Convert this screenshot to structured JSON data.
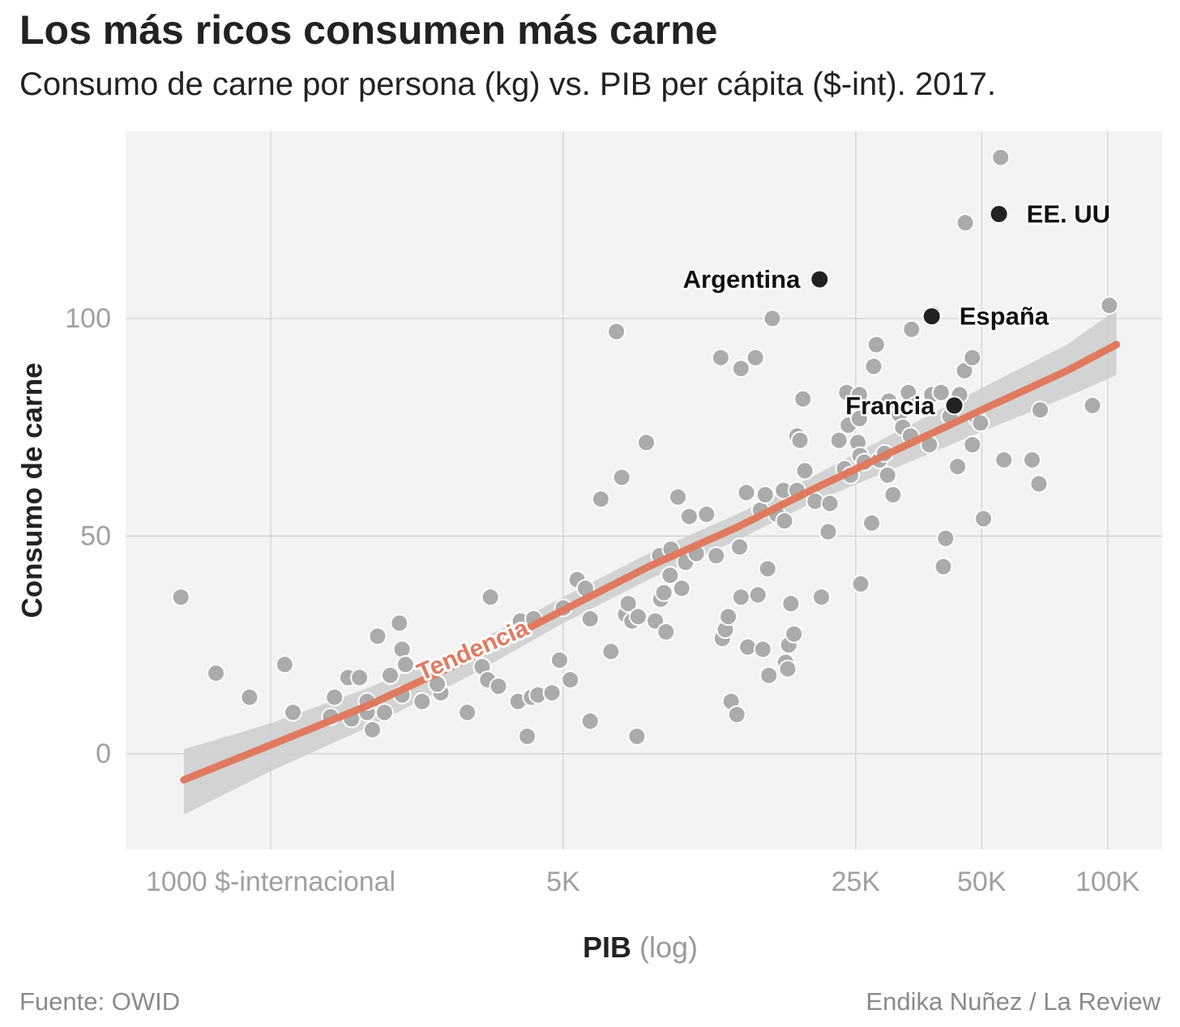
{
  "header": {
    "title": "Los más ricos consumen más carne",
    "subtitle": "Consumo de carne por persona (kg) vs. PIB per cápita ($-int). 2017."
  },
  "footer": {
    "source": "Fuente: OWID",
    "credit": "Endika Nuñez / La Review"
  },
  "colors": {
    "panel": "#f3f3f3",
    "grid": "#cfcfcf",
    "point": "#ababab",
    "highlight": "#222222",
    "trend": "#e07a5f",
    "band": "#cccccc",
    "axis_text": "#a0a0a0"
  },
  "chart_data": {
    "type": "scatter",
    "x_scale": "log",
    "xlim": [
      450,
      135000
    ],
    "ylim": [
      -22,
      143
    ],
    "xlabel_main": "PIB",
    "xlabel_suffix": "(log)",
    "ylabel": "Consumo de carne",
    "x_ticks": [
      {
        "value": 1000,
        "label": "1000 $-internacional"
      },
      {
        "value": 5000,
        "label": "5K"
      },
      {
        "value": 25000,
        "label": "25K"
      },
      {
        "value": 50000,
        "label": "50K"
      },
      {
        "value": 100000,
        "label": "100K"
      }
    ],
    "y_ticks": [
      {
        "value": 0,
        "label": "0"
      },
      {
        "value": 50,
        "label": "50"
      },
      {
        "value": 100,
        "label": "100"
      }
    ],
    "grid": true,
    "highlighted": [
      {
        "label": "EE. UU",
        "x": 55000,
        "y": 124,
        "label_side": "right"
      },
      {
        "label": "Argentina",
        "x": 20500,
        "y": 109,
        "label_side": "left"
      },
      {
        "label": "España",
        "x": 38000,
        "y": 100.5,
        "label_side": "right"
      },
      {
        "label": "Francia",
        "x": 43000,
        "y": 80,
        "label_side": "left"
      }
    ],
    "trend": {
      "label": "Tendencia",
      "points": [
        [
          620,
          -6
        ],
        [
          1000,
          2
        ],
        [
          1700,
          11
        ],
        [
          3000,
          22
        ],
        [
          5000,
          33
        ],
        [
          8000,
          43
        ],
        [
          13000,
          52
        ],
        [
          20000,
          61
        ],
        [
          30000,
          69
        ],
        [
          50000,
          79
        ],
        [
          80000,
          88
        ],
        [
          105000,
          94
        ]
      ],
      "band": [
        [
          620,
          1,
          -14
        ],
        [
          1000,
          7,
          -4
        ],
        [
          1700,
          15,
          6
        ],
        [
          3000,
          25,
          18
        ],
        [
          5000,
          36,
          30
        ],
        [
          8000,
          46,
          40
        ],
        [
          13000,
          55,
          49
        ],
        [
          20000,
          64,
          58
        ],
        [
          30000,
          73,
          65
        ],
        [
          50000,
          84,
          74
        ],
        [
          80000,
          94,
          82
        ],
        [
          105000,
          102,
          87
        ]
      ]
    },
    "points": [
      [
        610,
        36
      ],
      [
        740,
        18.5
      ],
      [
        890,
        13
      ],
      [
        1080,
        20.5
      ],
      [
        1130,
        9.5
      ],
      [
        1390,
        8.5
      ],
      [
        1420,
        13
      ],
      [
        1530,
        17.5
      ],
      [
        1560,
        8
      ],
      [
        1630,
        17.5
      ],
      [
        1700,
        9.5
      ],
      [
        1700,
        12
      ],
      [
        1750,
        5.5
      ],
      [
        1800,
        27
      ],
      [
        1870,
        9.5
      ],
      [
        1930,
        18
      ],
      [
        2030,
        30
      ],
      [
        2060,
        24
      ],
      [
        2100,
        20.5
      ],
      [
        2060,
        13.5
      ],
      [
        2300,
        12
      ],
      [
        2550,
        14
      ],
      [
        2500,
        16
      ],
      [
        2950,
        9.5
      ],
      [
        3200,
        20
      ],
      [
        3350,
        36
      ],
      [
        3300,
        17
      ],
      [
        3500,
        15.5
      ],
      [
        3900,
        12
      ],
      [
        3950,
        30.5
      ],
      [
        4100,
        4
      ],
      [
        4200,
        13
      ],
      [
        4250,
        31
      ],
      [
        4350,
        13.5
      ],
      [
        4700,
        14
      ],
      [
        4900,
        21.5
      ],
      [
        5000,
        33.5
      ],
      [
        5200,
        17
      ],
      [
        5400,
        40
      ],
      [
        5650,
        38
      ],
      [
        5800,
        31
      ],
      [
        5800,
        7.5
      ],
      [
        6150,
        58.5
      ],
      [
        6500,
        23.5
      ],
      [
        6700,
        97
      ],
      [
        6900,
        63.5
      ],
      [
        7050,
        32
      ],
      [
        7150,
        34.5
      ],
      [
        7300,
        30.5
      ],
      [
        7500,
        4
      ],
      [
        7550,
        31.5
      ],
      [
        7900,
        71.5
      ],
      [
        8300,
        30.5
      ],
      [
        8500,
        45.5
      ],
      [
        8550,
        35.5
      ],
      [
        8700,
        37
      ],
      [
        8800,
        28
      ],
      [
        9000,
        41
      ],
      [
        9050,
        47
      ],
      [
        9400,
        59
      ],
      [
        9600,
        38
      ],
      [
        9800,
        44
      ],
      [
        10000,
        54.5
      ],
      [
        10400,
        46
      ],
      [
        11000,
        55
      ],
      [
        11600,
        45.5
      ],
      [
        12000,
        26.5
      ],
      [
        11900,
        91
      ],
      [
        12200,
        28.5
      ],
      [
        12400,
        31.5
      ],
      [
        12600,
        12
      ],
      [
        13000,
        9
      ],
      [
        13200,
        47.5
      ],
      [
        13300,
        88.5
      ],
      [
        13300,
        36
      ],
      [
        13700,
        60
      ],
      [
        13800,
        24.5
      ],
      [
        14400,
        91
      ],
      [
        14600,
        36.5
      ],
      [
        14800,
        56
      ],
      [
        15000,
        24
      ],
      [
        15200,
        59.5
      ],
      [
        15400,
        42.5
      ],
      [
        15500,
        18
      ],
      [
        15800,
        100
      ],
      [
        16200,
        55
      ],
      [
        16800,
        60.5
      ],
      [
        16900,
        53.5
      ],
      [
        17000,
        21
      ],
      [
        17200,
        19.5
      ],
      [
        17300,
        25
      ],
      [
        17500,
        34.5
      ],
      [
        17800,
        27.5
      ],
      [
        18100,
        60.5
      ],
      [
        18100,
        73
      ],
      [
        18400,
        72
      ],
      [
        18700,
        81.5
      ],
      [
        18900,
        65
      ],
      [
        20000,
        58
      ],
      [
        20700,
        36
      ],
      [
        21500,
        51
      ],
      [
        21700,
        57.5
      ],
      [
        22800,
        72
      ],
      [
        23500,
        65.5
      ],
      [
        23800,
        83
      ],
      [
        24000,
        75.5
      ],
      [
        24300,
        64
      ],
      [
        25500,
        82.5
      ],
      [
        25300,
        71.5
      ],
      [
        25500,
        77
      ],
      [
        25600,
        68.5
      ],
      [
        26200,
        67
      ],
      [
        25700,
        39
      ],
      [
        27300,
        53
      ],
      [
        27600,
        89
      ],
      [
        28000,
        94
      ],
      [
        28500,
        67.5
      ],
      [
        29300,
        69
      ],
      [
        29800,
        64
      ],
      [
        30000,
        81
      ],
      [
        30700,
        59.5
      ],
      [
        31800,
        78
      ],
      [
        32400,
        75
      ],
      [
        33400,
        83
      ],
      [
        33800,
        73
      ],
      [
        34000,
        97.5
      ],
      [
        34700,
        80
      ],
      [
        36600,
        79.5
      ],
      [
        37500,
        71
      ],
      [
        38300,
        101
      ],
      [
        38000,
        82.5
      ],
      [
        40000,
        83
      ],
      [
        40500,
        43
      ],
      [
        41000,
        49.5
      ],
      [
        42000,
        77.5
      ],
      [
        43800,
        66
      ],
      [
        44300,
        82.5
      ],
      [
        45500,
        88
      ],
      [
        45700,
        122
      ],
      [
        47500,
        91
      ],
      [
        47500,
        71
      ],
      [
        48800,
        77
      ],
      [
        49700,
        76
      ],
      [
        50500,
        54
      ],
      [
        55500,
        137
      ],
      [
        56500,
        67.5
      ],
      [
        66000,
        67.5
      ],
      [
        68500,
        62
      ],
      [
        69000,
        79
      ],
      [
        92000,
        80
      ],
      [
        101000,
        103
      ]
    ]
  }
}
